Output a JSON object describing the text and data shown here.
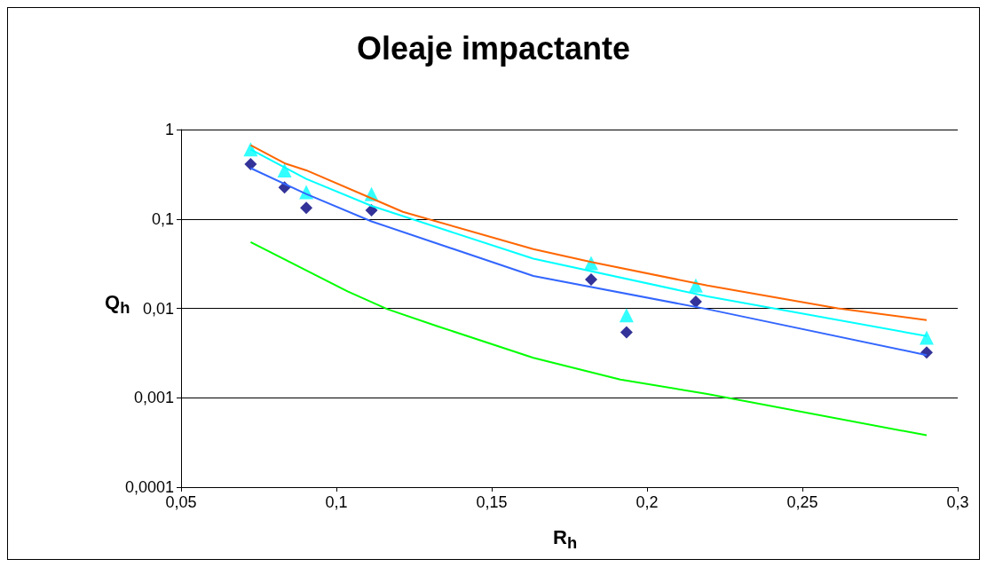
{
  "chart_data": {
    "type": "line",
    "title": "Oleaje impactante",
    "xlabel": "R$_{h}$",
    "ylabel": "Q$_{h}$",
    "log": "y",
    "grid": "y",
    "xlim": [
      0.05,
      0.3
    ],
    "xticks": [
      {
        "value": 0.05,
        "label": "0,05"
      },
      {
        "value": 0.1,
        "label": "0,1"
      },
      {
        "value": 0.15,
        "label": "0,15"
      },
      {
        "value": 0.2,
        "label": "0,2"
      },
      {
        "value": 0.25,
        "label": "0,25"
      },
      {
        "value": 0.3,
        "label": "0,3"
      }
    ],
    "ylim": [
      0.0001,
      1
    ],
    "yticks": [
      {
        "value": 0.0001,
        "label": "0,0001"
      },
      {
        "value": 0.001,
        "label": "0,001"
      },
      {
        "value": 0.01,
        "label": "0,01"
      },
      {
        "value": 0.1,
        "label": "0,1"
      },
      1
    ],
    "series": [
      {
        "marker": "none",
        "color": "#ff6600",
        "x": [
          0.0724,
          0.0833,
          0.0903,
          0.1113,
          0.1214,
          0.1634,
          0.182,
          0.2194,
          0.2614,
          0.29
        ],
        "values": [
          0.67,
          0.42,
          0.35,
          0.17,
          0.12,
          0.046,
          0.033,
          0.018,
          0.01,
          0.0074
        ]
      },
      {
        "marker": "none",
        "color": "#00ffff",
        "x": [
          0.0724,
          0.0903,
          0.1113,
          0.1634,
          0.2194,
          0.29
        ],
        "values": [
          0.6,
          0.28,
          0.14,
          0.036,
          0.0136,
          0.0049
        ]
      },
      {
        "marker": "none",
        "color": "#3366ff",
        "x": [
          0.0724,
          0.0903,
          0.1113,
          0.1634,
          0.2194,
          0.29
        ],
        "values": [
          0.37,
          0.19,
          0.094,
          0.023,
          0.0098,
          0.003
        ]
      },
      {
        "marker": "none",
        "color": "#00ff00",
        "x": [
          0.0724,
          0.1036,
          0.1164,
          0.1326,
          0.1634,
          0.1914,
          0.2194,
          0.29
        ],
        "values": [
          0.055,
          0.0155,
          0.0098,
          0.0063,
          0.0028,
          0.0016,
          0.0011,
          0.00038
        ]
      },
      {
        "type": "scatter",
        "marker": "diamond",
        "color": "#000080",
        "x": [
          0.0724,
          0.0833,
          0.0903,
          0.1113,
          0.182,
          0.1934,
          0.2157,
          0.29
        ],
        "values": [
          0.41,
          0.225,
          0.133,
          0.125,
          0.021,
          0.0054,
          0.0119,
          0.0032
        ]
      },
      {
        "type": "scatter",
        "marker": "triangle",
        "color": "#00ffff",
        "x": [
          0.0724,
          0.0833,
          0.0903,
          0.1113,
          0.182,
          0.1934,
          0.2157,
          0.29
        ],
        "values": [
          0.6,
          0.35,
          0.2,
          0.19,
          0.032,
          0.0084,
          0.018,
          0.0047
        ]
      }
    ]
  }
}
